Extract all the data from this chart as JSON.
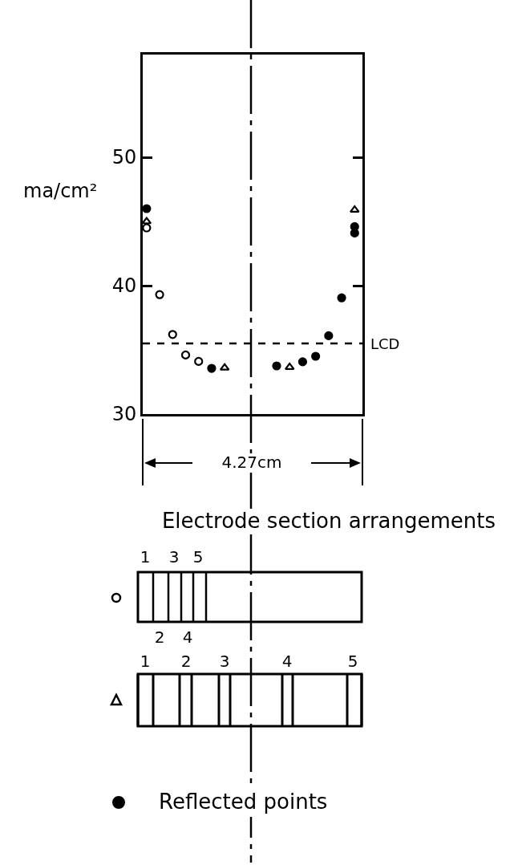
{
  "chart_data": {
    "type": "scatter",
    "ylabel": "ma/cm²",
    "ylim": [
      30,
      58
    ],
    "yticks": [
      30,
      40,
      50
    ],
    "tick_labels": "y",
    "grid": false,
    "legend": "bottom left",
    "categories": [
      null,
      null,
      null,
      null,
      null,
      null,
      null,
      null,
      null,
      null,
      null,
      null,
      null,
      null,
      null,
      null,
      null
    ],
    "series": [
      {
        "color": "#ffffff",
        "marker": "circle",
        "values": [
          44.5,
          39.3,
          36.2,
          34.6,
          34.1,
          null,
          null,
          null,
          null,
          null,
          null,
          null,
          null,
          null,
          null,
          null,
          null
        ]
      },
      {
        "color": "#ffffff",
        "marker": "triangle",
        "values": [
          45.0,
          null,
          null,
          null,
          null,
          null,
          33.6,
          null,
          null,
          null,
          null,
          33.65,
          null,
          null,
          null,
          null,
          45.9
        ]
      },
      {
        "name": "Reflected points",
        "color": "#000000",
        "marker": "circle",
        "values": [
          46.0,
          null,
          null,
          null,
          null,
          33.56,
          null,
          null,
          null,
          null,
          33.75,
          null,
          34.07,
          34.5,
          36.1,
          39.05,
          44.6
        ]
      },
      {
        "color": "#000000",
        "marker": "circle",
        "values": [
          null,
          null,
          null,
          null,
          null,
          null,
          null,
          null,
          null,
          null,
          null,
          null,
          null,
          null,
          null,
          null,
          44.1
        ]
      }
    ],
    "ref_lines": [
      {
        "axis": "y",
        "value": 35.5,
        "label": "LCD",
        "line_style": "dashed"
      }
    ],
    "annotations": [
      "4.27cm",
      "Electrode section arrangements",
      "1",
      "3",
      "5",
      "2",
      "4",
      "1",
      "2",
      "3",
      "4",
      "5"
    ]
  }
}
